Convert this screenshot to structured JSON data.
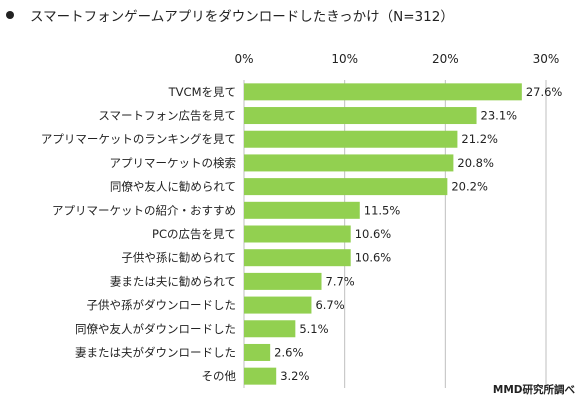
{
  "chart_data": {
    "type": "bar",
    "orientation": "horizontal",
    "title": "スマートフォンゲームアプリをダウンロードしたきっかけ（N=312）",
    "categories": [
      "TVCMを見て",
      "スマートフォン広告を見て",
      "アプリマーケットのランキングを見て",
      "アプリマーケットの検索",
      "同僚や友人に勧められて",
      "アプリマーケットの紹介・おすすめ",
      "PCの広告を見て",
      "子供や孫に勧められて",
      "妻または夫に勧められて",
      "子供や孫がダウンロードした",
      "同僚や友人がダウンロードした",
      "妻または夫がダウンロードした",
      "その他"
    ],
    "values": [
      27.6,
      23.1,
      21.2,
      20.8,
      20.2,
      11.5,
      10.6,
      10.6,
      7.7,
      6.7,
      5.1,
      2.6,
      3.2
    ],
    "value_labels": [
      "27.6%",
      "23.1%",
      "21.2%",
      "20.8%",
      "20.2%",
      "11.5%",
      "10.6%",
      "10.6%",
      "7.7%",
      "6.7%",
      "5.1%",
      "2.6%",
      "3.2%"
    ],
    "xlim": [
      0,
      30
    ],
    "x_ticks": [
      0,
      10,
      20,
      30
    ],
    "x_tick_labels": [
      "0%",
      "10%",
      "20%",
      "30%"
    ],
    "tick_position": "top",
    "grid": true,
    "bar_color": "#92d050",
    "source": "MMD研究所調べ"
  }
}
